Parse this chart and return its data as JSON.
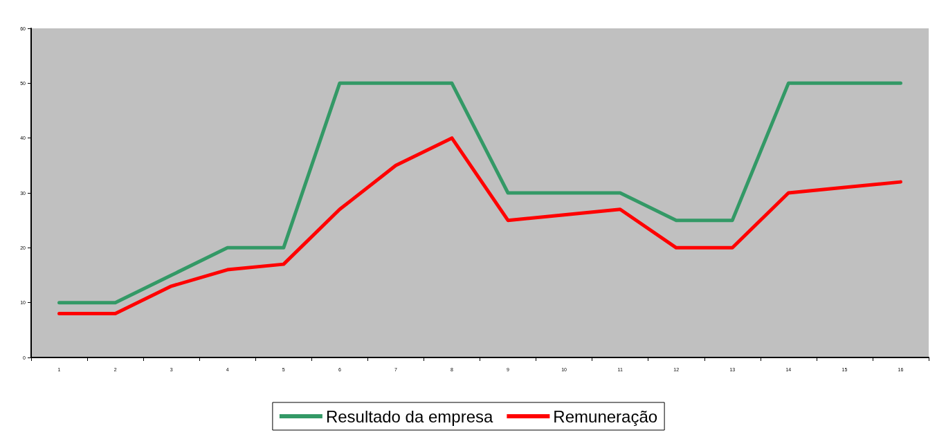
{
  "chart_data": {
    "type": "line",
    "categories": [
      "1",
      "2",
      "3",
      "4",
      "5",
      "6",
      "7",
      "8",
      "9",
      "10",
      "11",
      "12",
      "13",
      "14",
      "15",
      "16"
    ],
    "series": [
      {
        "name": "Resultado da empresa",
        "color": "#339966",
        "values": [
          10,
          10,
          15,
          20,
          20,
          50,
          50,
          50,
          30,
          30,
          30,
          25,
          25,
          50,
          50,
          50
        ]
      },
      {
        "name": "Remuneração",
        "color": "#ff0000",
        "values": [
          8,
          8,
          13,
          16,
          17,
          27,
          35,
          40,
          25,
          26,
          27,
          20,
          20,
          30,
          31,
          32
        ]
      }
    ],
    "ylim": [
      0,
      60
    ],
    "yticks": [
      0,
      10,
      20,
      30,
      40,
      50,
      60
    ],
    "grid": false,
    "legend": "bottom",
    "marker": "none",
    "line_style": "solid"
  }
}
